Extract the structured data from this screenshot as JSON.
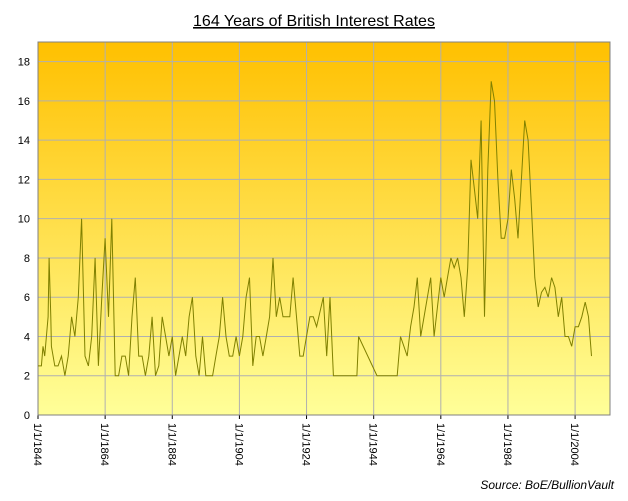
{
  "chart_data": {
    "type": "line",
    "title": "164 Years of British Interest Rates",
    "source": "Source:  BoE/BullionVault",
    "x": [
      1844,
      1845,
      1845.5,
      1846,
      1847,
      1847.3,
      1847.8,
      1848,
      1849,
      1850,
      1851,
      1852,
      1853,
      1854,
      1855,
      1856,
      1857,
      1858,
      1859,
      1860,
      1861,
      1862,
      1863,
      1864,
      1865,
      1866,
      1867,
      1868,
      1869,
      1870,
      1871,
      1872,
      1873,
      1874,
      1875,
      1876,
      1877,
      1878,
      1879,
      1880,
      1881,
      1882,
      1883,
      1884,
      1885,
      1886,
      1887,
      1888,
      1889,
      1890,
      1891,
      1892,
      1893,
      1894,
      1895,
      1896,
      1897,
      1898,
      1899,
      1900,
      1901,
      1902,
      1903,
      1904,
      1905,
      1906,
      1907,
      1908,
      1909,
      1910,
      1911,
      1912,
      1913,
      1914,
      1915,
      1916,
      1917,
      1919,
      1920,
      1921,
      1922,
      1923,
      1924,
      1925,
      1926,
      1927,
      1929,
      1930,
      1931,
      1932,
      1935,
      1939,
      1939.5,
      1945,
      1951,
      1952,
      1953,
      1954,
      1955,
      1956,
      1957,
      1958,
      1960,
      1961,
      1962,
      1964,
      1965,
      1966,
      1967,
      1968,
      1969,
      1970,
      1971,
      1972,
      1973,
      1974,
      1975,
      1976,
      1977,
      1978,
      1979,
      1980,
      1981,
      1982,
      1983,
      1984,
      1985,
      1986,
      1987,
      1988,
      1989,
      1990,
      1991,
      1992,
      1993,
      1994,
      1995,
      1996,
      1997,
      1998,
      1999,
      2000,
      2001,
      2002,
      2003,
      2004,
      2005,
      2006,
      2007,
      2008,
      2008.9
    ],
    "values": [
      2.5,
      2.5,
      3.5,
      3,
      5,
      8,
      5,
      3.5,
      2.5,
      2.5,
      3,
      2,
      3,
      5,
      4,
      6,
      10,
      3,
      2.5,
      4,
      8,
      2.5,
      6,
      9,
      5,
      10,
      2,
      2,
      3,
      3,
      2,
      5,
      7,
      3,
      3,
      2,
      3,
      5,
      2,
      2.5,
      5,
      4,
      3,
      4,
      2,
      3,
      4,
      3,
      5,
      6,
      3,
      2,
      4,
      2,
      2,
      2,
      3,
      4,
      6,
      4,
      3,
      3,
      4,
      3,
      4,
      6,
      7,
      2.5,
      4,
      4,
      3,
      4,
      5,
      8,
      5,
      6,
      5,
      5,
      7,
      5,
      3,
      3,
      4,
      5,
      5,
      4.5,
      6,
      3,
      6,
      2,
      2,
      2,
      4,
      2,
      2,
      4,
      3.5,
      3,
      4.5,
      5.5,
      7,
      4,
      6,
      7,
      4,
      7,
      6,
      7,
      8,
      7.5,
      8,
      7,
      5,
      7.5,
      13,
      11.5,
      10,
      15,
      5,
      12.5,
      17,
      16,
      12,
      9,
      9,
      10,
      12.5,
      11,
      9,
      12,
      15,
      14,
      10.5,
      7,
      5.5,
      6.25,
      6.5,
      6,
      7,
      6.5,
      5,
      6,
      4,
      4,
      3.5,
      4.5,
      4.5,
      5,
      5.75,
      5,
      3
    ],
    "color": "#808000",
    "xlim": [
      1844,
      2014.4
    ],
    "xticks": [
      {
        "value": 1844,
        "label": "1/1/1844"
      },
      {
        "value": 1864,
        "label": "1/1/1864"
      },
      {
        "value": 1884,
        "label": "1/1/1884"
      },
      {
        "value": 1904,
        "label": "1/1/1904"
      },
      {
        "value": 1924,
        "label": "1/1/1924"
      },
      {
        "value": 1944,
        "label": "1/1/1944"
      },
      {
        "value": 1964,
        "label": "1/1/1964"
      },
      {
        "value": 1984,
        "label": "1/1/1984"
      },
      {
        "value": 2004,
        "label": "1/1/2004"
      }
    ],
    "ylim": [
      0,
      19
    ],
    "yticks": [
      0,
      2,
      4,
      6,
      8,
      10,
      12,
      14,
      16,
      18
    ],
    "grid": true
  }
}
